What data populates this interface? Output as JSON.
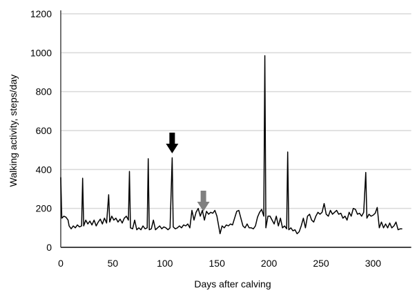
{
  "chart_data": {
    "type": "line",
    "title": "",
    "xlabel": "Days after calving",
    "ylabel": "Walking activity, steps/day",
    "xlim": [
      0,
      330
    ],
    "ylim": [
      0,
      1200
    ],
    "xticks": [
      0,
      50,
      100,
      150,
      200,
      250,
      300
    ],
    "yticks": [
      0,
      200,
      400,
      600,
      800,
      1000,
      1200
    ],
    "grid": "horizontal",
    "line_color": "#000000",
    "series": [
      {
        "points": [
          [
            0,
            360
          ],
          [
            1,
            150
          ],
          [
            3,
            160
          ],
          [
            5,
            155
          ],
          [
            7,
            140
          ],
          [
            8,
            110
          ],
          [
            10,
            95
          ],
          [
            12,
            110
          ],
          [
            14,
            100
          ],
          [
            16,
            115
          ],
          [
            18,
            105
          ],
          [
            20,
            110
          ],
          [
            21,
            355
          ],
          [
            22,
            110
          ],
          [
            24,
            140
          ],
          [
            26,
            120
          ],
          [
            28,
            135
          ],
          [
            30,
            115
          ],
          [
            32,
            140
          ],
          [
            34,
            110
          ],
          [
            36,
            130
          ],
          [
            38,
            145
          ],
          [
            40,
            120
          ],
          [
            42,
            150
          ],
          [
            44,
            125
          ],
          [
            46,
            270
          ],
          [
            47,
            130
          ],
          [
            49,
            160
          ],
          [
            51,
            140
          ],
          [
            53,
            150
          ],
          [
            55,
            130
          ],
          [
            57,
            145
          ],
          [
            59,
            125
          ],
          [
            61,
            150
          ],
          [
            63,
            160
          ],
          [
            65,
            140
          ],
          [
            66,
            390
          ],
          [
            67,
            100
          ],
          [
            69,
            95
          ],
          [
            71,
            140
          ],
          [
            73,
            90
          ],
          [
            75,
            100
          ],
          [
            77,
            90
          ],
          [
            79,
            110
          ],
          [
            81,
            95
          ],
          [
            83,
            100
          ],
          [
            84,
            455
          ],
          [
            85,
            90
          ],
          [
            87,
            95
          ],
          [
            89,
            140
          ],
          [
            91,
            90
          ],
          [
            93,
            100
          ],
          [
            95,
            110
          ],
          [
            97,
            95
          ],
          [
            99,
            105
          ],
          [
            101,
            100
          ],
          [
            103,
            90
          ],
          [
            105,
            100
          ],
          [
            107,
            460
          ],
          [
            108,
            105
          ],
          [
            110,
            95
          ],
          [
            112,
            100
          ],
          [
            114,
            110
          ],
          [
            116,
            100
          ],
          [
            118,
            115
          ],
          [
            120,
            110
          ],
          [
            122,
            120
          ],
          [
            124,
            100
          ],
          [
            126,
            190
          ],
          [
            128,
            140
          ],
          [
            130,
            180
          ],
          [
            132,
            200
          ],
          [
            134,
            160
          ],
          [
            136,
            190
          ],
          [
            138,
            140
          ],
          [
            140,
            185
          ],
          [
            142,
            170
          ],
          [
            144,
            180
          ],
          [
            146,
            175
          ],
          [
            148,
            190
          ],
          [
            150,
            160
          ],
          [
            152,
            100
          ],
          [
            153,
            70
          ],
          [
            155,
            110
          ],
          [
            157,
            100
          ],
          [
            159,
            115
          ],
          [
            161,
            110
          ],
          [
            163,
            120
          ],
          [
            165,
            115
          ],
          [
            167,
            150
          ],
          [
            169,
            185
          ],
          [
            171,
            190
          ],
          [
            173,
            150
          ],
          [
            175,
            110
          ],
          [
            177,
            100
          ],
          [
            179,
            120
          ],
          [
            181,
            100
          ],
          [
            183,
            100
          ],
          [
            185,
            95
          ],
          [
            187,
            110
          ],
          [
            189,
            155
          ],
          [
            191,
            180
          ],
          [
            193,
            195
          ],
          [
            195,
            160
          ],
          [
            196,
            985
          ],
          [
            197,
            100
          ],
          [
            199,
            160
          ],
          [
            201,
            160
          ],
          [
            203,
            140
          ],
          [
            205,
            120
          ],
          [
            207,
            160
          ],
          [
            209,
            110
          ],
          [
            211,
            150
          ],
          [
            213,
            100
          ],
          [
            215,
            110
          ],
          [
            217,
            95
          ],
          [
            218,
            490
          ],
          [
            219,
            90
          ],
          [
            221,
            100
          ],
          [
            223,
            85
          ],
          [
            225,
            90
          ],
          [
            227,
            70
          ],
          [
            229,
            80
          ],
          [
            231,
            110
          ],
          [
            233,
            150
          ],
          [
            235,
            100
          ],
          [
            237,
            160
          ],
          [
            239,
            170
          ],
          [
            241,
            140
          ],
          [
            243,
            130
          ],
          [
            245,
            160
          ],
          [
            247,
            180
          ],
          [
            249,
            170
          ],
          [
            251,
            180
          ],
          [
            253,
            225
          ],
          [
            255,
            170
          ],
          [
            257,
            160
          ],
          [
            259,
            190
          ],
          [
            261,
            170
          ],
          [
            263,
            180
          ],
          [
            265,
            190
          ],
          [
            267,
            170
          ],
          [
            269,
            175
          ],
          [
            271,
            150
          ],
          [
            273,
            160
          ],
          [
            275,
            140
          ],
          [
            277,
            180
          ],
          [
            279,
            160
          ],
          [
            281,
            200
          ],
          [
            283,
            195
          ],
          [
            285,
            170
          ],
          [
            287,
            175
          ],
          [
            289,
            160
          ],
          [
            291,
            180
          ],
          [
            293,
            385
          ],
          [
            294,
            150
          ],
          [
            296,
            170
          ],
          [
            298,
            160
          ],
          [
            300,
            165
          ],
          [
            302,
            175
          ],
          [
            304,
            205
          ],
          [
            306,
            100
          ],
          [
            308,
            130
          ],
          [
            310,
            100
          ],
          [
            312,
            120
          ],
          [
            314,
            100
          ],
          [
            316,
            125
          ],
          [
            318,
            100
          ],
          [
            320,
            110
          ],
          [
            322,
            130
          ],
          [
            324,
            90
          ],
          [
            326,
            95
          ],
          [
            328,
            95
          ]
        ]
      }
    ],
    "annotations": [
      {
        "type": "arrow",
        "x": 107,
        "color": "#000000"
      },
      {
        "type": "arrow",
        "x": 137,
        "color": "#808080"
      }
    ]
  }
}
